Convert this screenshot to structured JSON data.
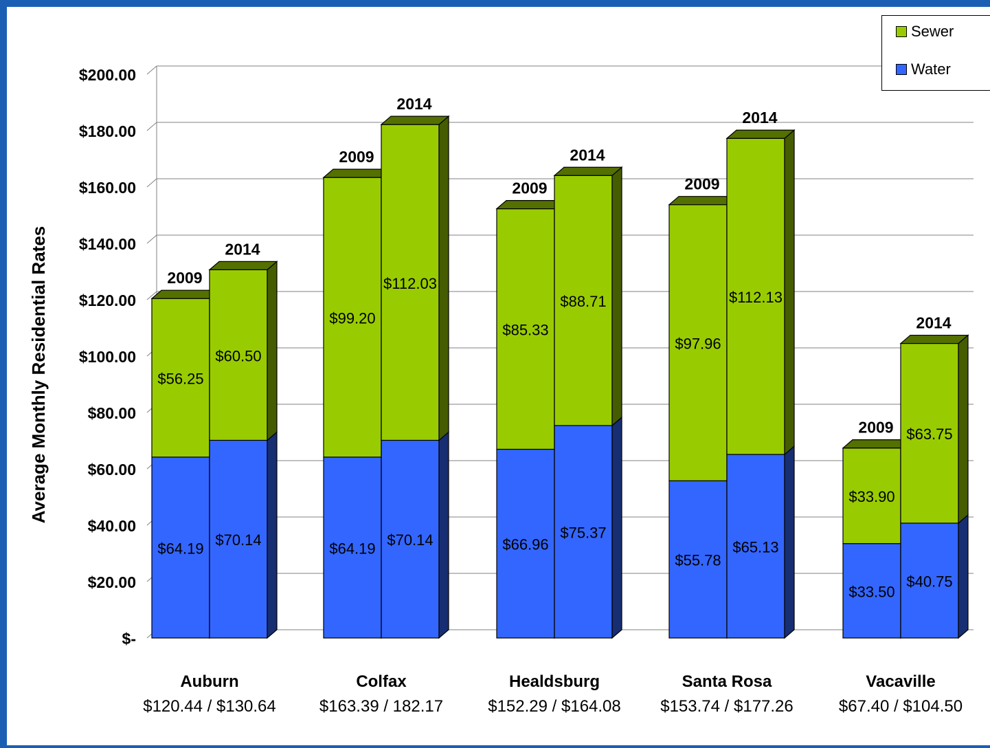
{
  "chart_data": {
    "type": "bar",
    "stacked": true,
    "three_d": true,
    "ylabel": "Average Monthly Residential Rates",
    "ylim": [
      0,
      200
    ],
    "yticks": [
      "$-",
      "$20.00",
      "$40.00",
      "$60.00",
      "$80.00",
      "$100.00",
      "$120.00",
      "$140.00",
      "$160.00",
      "$180.00",
      "$200.00"
    ],
    "grid": true,
    "legend_position": "top-right",
    "colors": {
      "water": "#3366ff",
      "sewer": "#99cc00",
      "grid": "#808080"
    },
    "legend": [
      {
        "name": "Sewer",
        "color": "#99cc00"
      },
      {
        "name": "Water",
        "color": "#3366ff"
      }
    ],
    "groups": [
      {
        "city": "Auburn",
        "totals_label": "$120.44 / $130.64",
        "bars": [
          {
            "year": "2009",
            "water": 64.19,
            "sewer": 56.25,
            "water_label": "$64.19",
            "sewer_label": "$56.25"
          },
          {
            "year": "2014",
            "water": 70.14,
            "sewer": 60.5,
            "water_label": "$70.14",
            "sewer_label": "$60.50"
          }
        ]
      },
      {
        "city": "Colfax",
        "totals_label": "$163.39 / 182.17",
        "bars": [
          {
            "year": "2009",
            "water": 64.19,
            "sewer": 99.2,
            "water_label": "$64.19",
            "sewer_label": "$99.20"
          },
          {
            "year": "2014",
            "water": 70.14,
            "sewer": 112.03,
            "water_label": "$70.14",
            "sewer_label": "$112.03"
          }
        ]
      },
      {
        "city": "Healdsburg",
        "totals_label": "$152.29 / $164.08",
        "bars": [
          {
            "year": "2009",
            "water": 66.96,
            "sewer": 85.33,
            "water_label": "$66.96",
            "sewer_label": "$85.33"
          },
          {
            "year": "2014",
            "water": 75.37,
            "sewer": 88.71,
            "water_label": "$75.37",
            "sewer_label": "$88.71"
          }
        ]
      },
      {
        "city": "Santa Rosa",
        "totals_label": "$153.74 / $177.26",
        "bars": [
          {
            "year": "2009",
            "water": 55.78,
            "sewer": 97.96,
            "water_label": "$55.78",
            "sewer_label": "$97.96"
          },
          {
            "year": "2014",
            "water": 65.13,
            "sewer": 112.13,
            "water_label": "$65.13",
            "sewer_label": "$112.13"
          }
        ]
      },
      {
        "city": "Vacaville",
        "totals_label": "$67.40 / $104.50",
        "bars": [
          {
            "year": "2009",
            "water": 33.5,
            "sewer": 33.9,
            "water_label": "$33.50",
            "sewer_label": "$33.90"
          },
          {
            "year": "2014",
            "water": 40.75,
            "sewer": 63.75,
            "water_label": "$40.75",
            "sewer_label": "$63.75"
          }
        ]
      }
    ]
  }
}
